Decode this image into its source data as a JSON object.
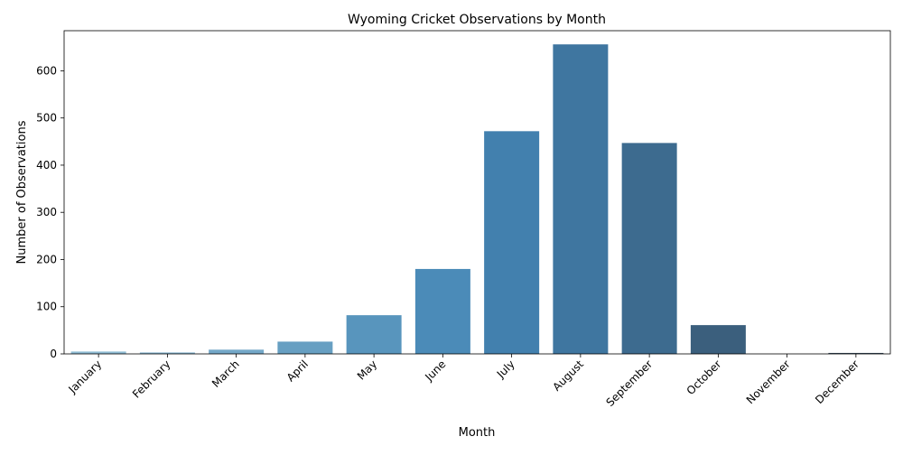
{
  "chart_data": {
    "type": "bar",
    "title": "Wyoming Cricket Observations by Month",
    "xlabel": "Month",
    "ylabel": "Number of Observations",
    "categories": [
      "January",
      "February",
      "March",
      "April",
      "May",
      "June",
      "July",
      "August",
      "September",
      "October",
      "November",
      "December"
    ],
    "values": [
      5,
      3,
      9,
      26,
      82,
      180,
      472,
      656,
      447,
      61,
      0,
      2
    ],
    "colors": [
      "#8fbcd4",
      "#82b2ce",
      "#74a8c8",
      "#679fc2",
      "#5895bd",
      "#4b8bb8",
      "#4280ae",
      "#3f76a0",
      "#3d6b8f",
      "#3b5f7d",
      "#39546c",
      "#37495c"
    ],
    "ylim": [
      0,
      685
    ],
    "yticks": [
      0,
      100,
      200,
      300,
      400,
      500,
      600
    ],
    "grid": false,
    "legend": false
  }
}
